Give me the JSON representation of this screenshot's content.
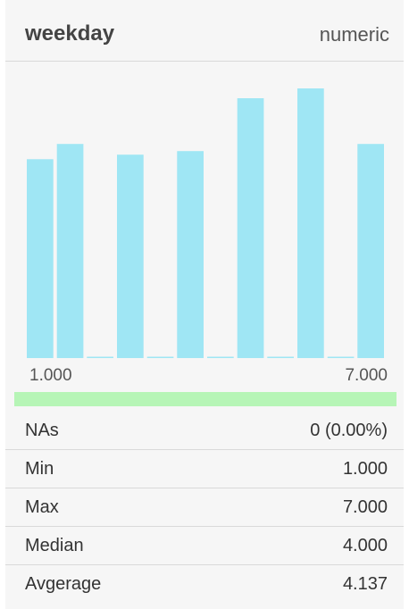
{
  "header": {
    "title": "weekday",
    "type": "numeric"
  },
  "chart_data": {
    "type": "bar",
    "categories": [
      "1",
      "1.5",
      "2",
      "2.5",
      "3",
      "3.5",
      "4",
      "4.5",
      "5",
      "5.5",
      "6",
      "6.5",
      "7"
    ],
    "values": [
      222,
      239,
      1,
      227,
      1,
      231,
      1,
      290,
      1,
      301,
      1,
      239,
      1
    ],
    "bar_values": [
      222,
      239,
      1,
      227,
      1,
      231,
      1,
      290,
      1,
      301,
      1,
      239
    ],
    "x_min_label": "1.000",
    "x_max_label": "7.000",
    "ylim": [
      0,
      301
    ],
    "bar_color": "#9fe6f4",
    "grid": false
  },
  "valid_bar_color": "#b6f5b6",
  "stats": [
    {
      "label": "NAs",
      "value": "0 (0.00%)"
    },
    {
      "label": "Min",
      "value": "1.000"
    },
    {
      "label": "Max",
      "value": "7.000"
    },
    {
      "label": "Median",
      "value": "4.000"
    },
    {
      "label": "Avgerage",
      "value": "4.137"
    }
  ]
}
